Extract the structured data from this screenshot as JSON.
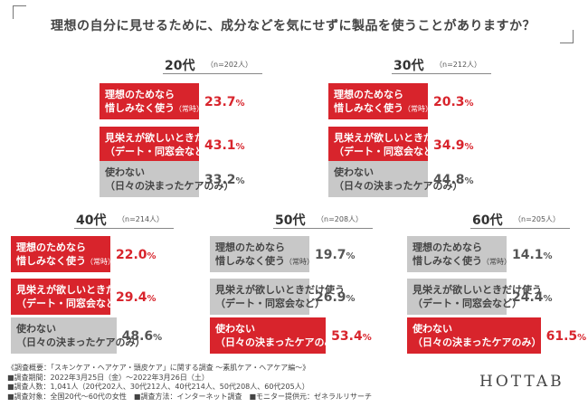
{
  "title": "理想の自分に見せるために、成分などを気にせずに製品を使うことがありますか？",
  "chart_data": [
    {
      "type": "bar",
      "age": "20代",
      "n": "（n=202人）",
      "rows": [
        {
          "line1": "理想のためなら",
          "line2": "惜しみなく使う",
          "suffix": "（常時）",
          "value": 23.7,
          "int": "23.",
          "dec": "7",
          "highlight": true
        },
        {
          "line1": "見栄えが欲しいときだけ使う",
          "line2": "（デート・同窓会など）",
          "suffix": "",
          "value": 43.1,
          "int": "43.",
          "dec": "1",
          "highlight": true
        },
        {
          "line1": "使わない",
          "line2": "（日々の決まったケアのみ）",
          "suffix": "",
          "value": 33.2,
          "int": "33.",
          "dec": "2",
          "highlight": false
        }
      ]
    },
    {
      "type": "bar",
      "age": "30代",
      "n": "（n=212人）",
      "rows": [
        {
          "line1": "理想のためなら",
          "line2": "惜しみなく使う",
          "suffix": "（常時）",
          "value": 20.3,
          "int": "20.",
          "dec": "3",
          "highlight": true
        },
        {
          "line1": "見栄えが欲しいときだけ使う",
          "line2": "（デート・同窓会など）",
          "suffix": "",
          "value": 34.9,
          "int": "34.",
          "dec": "9",
          "highlight": true
        },
        {
          "line1": "使わない",
          "line2": "（日々の決まったケアのみ）",
          "suffix": "",
          "value": 44.8,
          "int": "44.",
          "dec": "8",
          "highlight": false
        }
      ]
    },
    {
      "type": "bar",
      "age": "40代",
      "n": "（n=214人）",
      "rows": [
        {
          "line1": "理想のためなら",
          "line2": "惜しみなく使う",
          "suffix": "（常時）",
          "value": 22.0,
          "int": "22.",
          "dec": "0",
          "highlight": true
        },
        {
          "line1": "見栄えが欲しいときだけ使う",
          "line2": "（デート・同窓会など）",
          "suffix": "",
          "value": 29.4,
          "int": "29.",
          "dec": "4",
          "highlight": true
        },
        {
          "line1": "使わない",
          "line2": "（日々の決まったケアのみ）",
          "suffix": "",
          "value": 48.6,
          "int": "48.",
          "dec": "6",
          "highlight": false
        }
      ]
    },
    {
      "type": "bar",
      "age": "50代",
      "n": "（n=208人）",
      "rows": [
        {
          "line1": "理想のためなら",
          "line2": "惜しみなく使う",
          "suffix": "（常時）",
          "value": 19.7,
          "int": "19.",
          "dec": "7",
          "highlight": false
        },
        {
          "line1": "見栄えが欲しいときだけ使う",
          "line2": "（デート・同窓会など）",
          "suffix": "",
          "value": 26.9,
          "int": "26.",
          "dec": "9",
          "highlight": false
        },
        {
          "line1": "使わない",
          "line2": "（日々の決まったケアのみ）",
          "suffix": "",
          "value": 53.4,
          "int": "53.",
          "dec": "4",
          "highlight": true
        }
      ]
    },
    {
      "type": "bar",
      "age": "60代",
      "n": "（n=205人）",
      "rows": [
        {
          "line1": "理想のためなら",
          "line2": "惜しみなく使う",
          "suffix": "（常時）",
          "value": 14.1,
          "int": "14.",
          "dec": "1",
          "highlight": false
        },
        {
          "line1": "見栄えが欲しいときだけ使う",
          "line2": "（デート・同窓会など）",
          "suffix": "",
          "value": 24.4,
          "int": "24.",
          "dec": "4",
          "highlight": false
        },
        {
          "line1": "使わない",
          "line2": "（日々の決まったケアのみ）",
          "suffix": "",
          "value": 61.5,
          "int": "61.",
          "dec": "5",
          "highlight": true
        }
      ]
    }
  ],
  "footer": [
    "《調査概要：「スキンケア・ヘアケア・頭皮ケア」に関する調査 ～素肌ケア・ヘアケア編～》",
    "■調査期間：2022年3月25日（金）～2022年3月26日（土）",
    "■調査人数：1,041人（20代202人、30代212人、40代214人、50代208人、60代205人）",
    "■調査対象：全国20代～60代の女性　■調査方法：インターネット調査　■モニター提供元：ゼネラルリサーチ"
  ],
  "logo": "HOTTAB",
  "colors": {
    "highlight": "#d8242c",
    "neutral": "#c8c8c8"
  }
}
